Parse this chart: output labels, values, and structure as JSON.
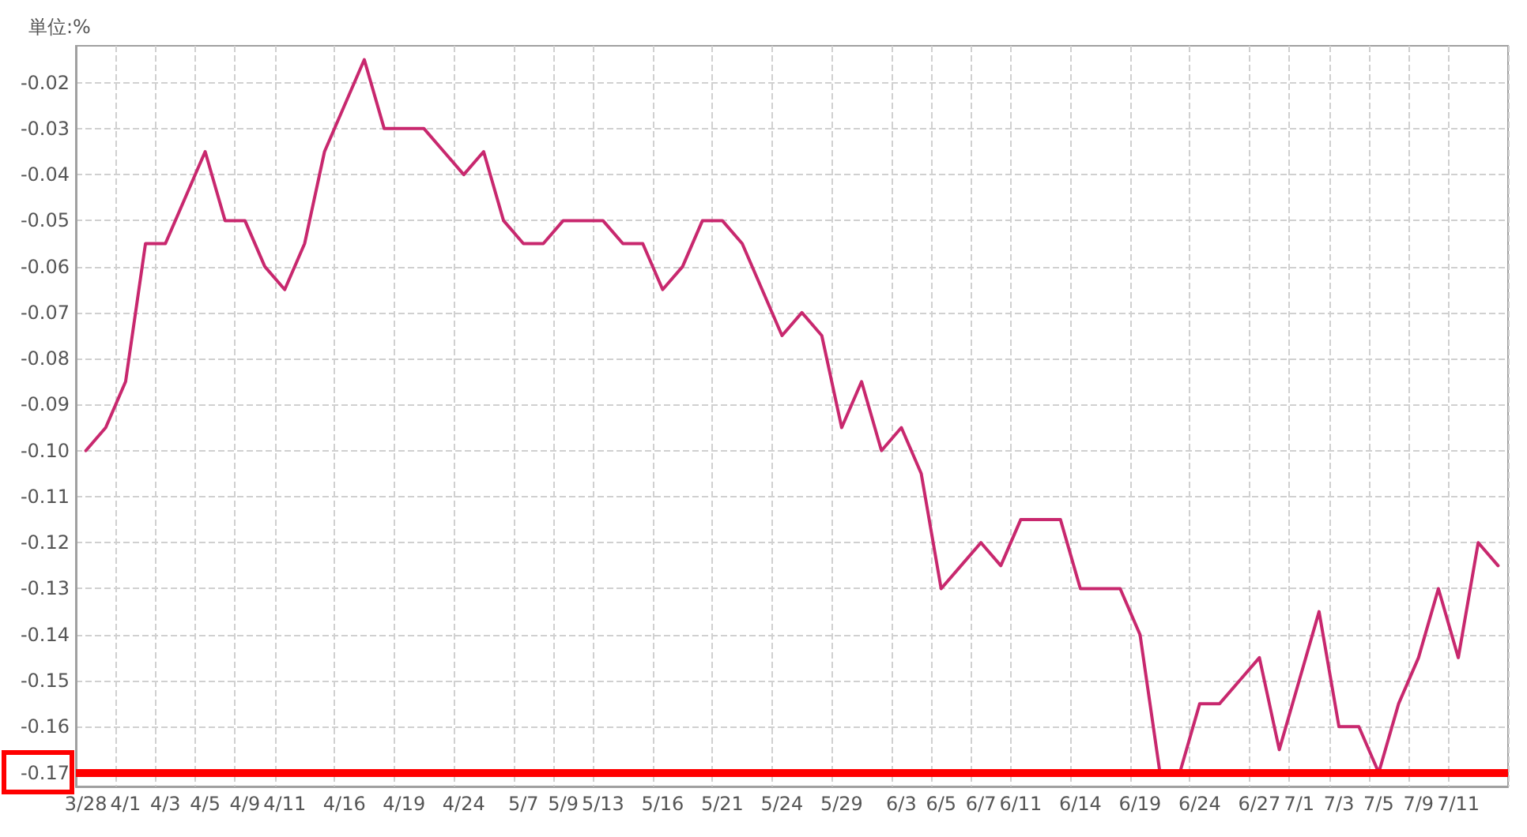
{
  "chart_data": {
    "type": "line",
    "ylabel": "単位:%",
    "categories": [
      "3/28",
      null,
      "4/1",
      null,
      "4/3",
      null,
      "4/5",
      null,
      "4/9",
      null,
      "4/11",
      null,
      null,
      "4/16",
      null,
      null,
      "4/19",
      null,
      null,
      "4/24",
      null,
      null,
      "5/7",
      null,
      "5/9",
      null,
      "5/13",
      null,
      null,
      "5/16",
      null,
      null,
      "5/21",
      null,
      null,
      "5/24",
      null,
      null,
      "5/29",
      null,
      null,
      "6/3",
      null,
      "6/5",
      null,
      "6/7",
      null,
      "6/11",
      null,
      null,
      "6/14",
      null,
      null,
      "6/19",
      null,
      null,
      "6/24",
      null,
      null,
      "6/27",
      null,
      "7/1",
      null,
      "7/3",
      null,
      "7/5",
      null,
      "7/9",
      null,
      "7/11",
      null,
      null
    ],
    "series": [
      {
        "color": "#c8286e",
        "values": [
          -0.1,
          -0.095,
          -0.085,
          -0.055,
          -0.055,
          -0.045,
          -0.035,
          -0.05,
          -0.05,
          -0.06,
          -0.065,
          -0.055,
          -0.035,
          -0.025,
          -0.015,
          -0.03,
          -0.03,
          -0.03,
          -0.035,
          -0.04,
          -0.035,
          -0.05,
          -0.055,
          -0.055,
          -0.05,
          -0.05,
          -0.05,
          -0.055,
          -0.055,
          -0.065,
          -0.06,
          -0.05,
          -0.05,
          -0.055,
          -0.065,
          -0.075,
          -0.07,
          -0.075,
          -0.095,
          -0.085,
          -0.1,
          -0.095,
          -0.105,
          -0.13,
          -0.125,
          -0.12,
          -0.125,
          -0.115,
          -0.115,
          -0.115,
          -0.13,
          -0.13,
          -0.13,
          -0.14,
          -0.17,
          -0.17,
          -0.155,
          -0.155,
          -0.15,
          -0.145,
          -0.165,
          -0.15,
          -0.135,
          -0.16,
          -0.16,
          -0.17,
          -0.155,
          -0.145,
          -0.13,
          -0.145,
          -0.12,
          -0.125
        ]
      }
    ],
    "ylim": [
      -0.173,
      -0.012
    ],
    "yticks": [
      -0.17,
      -0.16,
      -0.15,
      -0.14,
      -0.13,
      -0.12,
      -0.11,
      {
        "value": -0.1,
        "label": "-0.10"
      },
      -0.09,
      -0.08,
      -0.07,
      -0.06,
      -0.05,
      -0.04,
      -0.03,
      -0.02
    ],
    "grid": true,
    "marker": "none",
    "line_style": "solid",
    "ref_lines": [
      {
        "axis": "y",
        "value": -0.17,
        "color": "#ff0000"
      }
    ]
  }
}
